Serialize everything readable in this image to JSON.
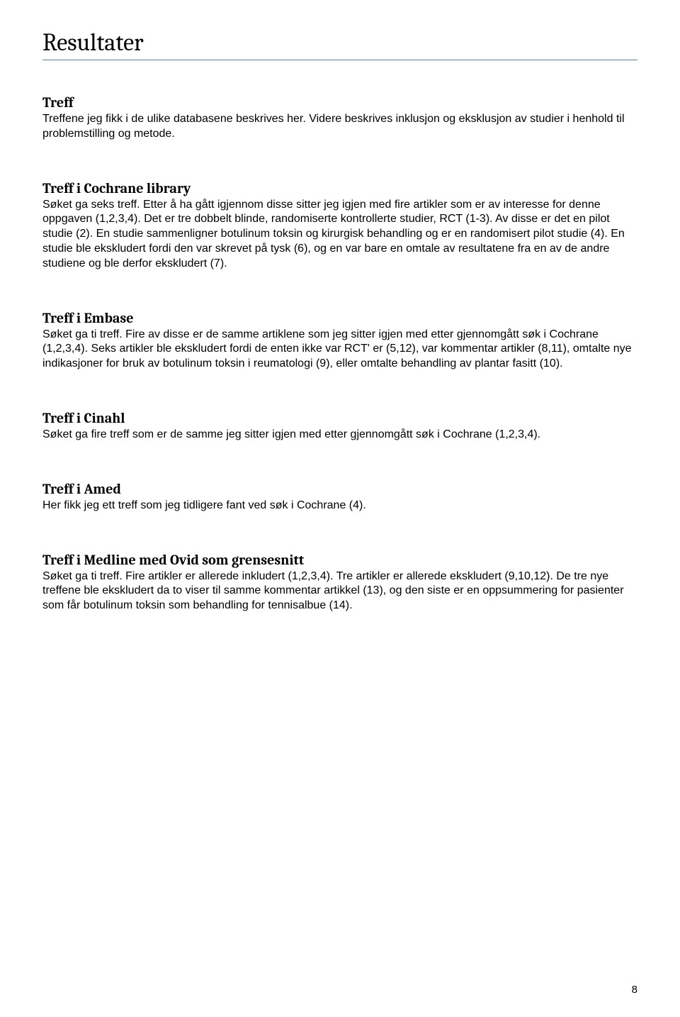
{
  "page": {
    "title": "Resultater",
    "number": "8"
  },
  "sections": [
    {
      "heading": "Treff",
      "body": "Treffene jeg fikk i de ulike databasene beskrives her. Videre beskrives inklusjon og eksklusjon av studier i henhold til problemstilling og metode."
    },
    {
      "heading": "Treff i Cochrane library",
      "body": "Søket ga seks treff. Etter å ha gått igjennom disse sitter jeg igjen med fire artikler som er av interesse for denne oppgaven (1,2,3,4). Det er tre dobbelt blinde, randomiserte kontrollerte studier, RCT (1-3). Av disse er det en pilot studie (2). En studie sammenligner botulinum toksin og kirurgisk behandling og er en randomisert pilot studie (4). En studie ble ekskludert fordi den var skrevet på tysk (6), og en var bare en omtale av resultatene fra en av de andre studiene og ble derfor ekskludert (7)."
    },
    {
      "heading": "Treff i Embase",
      "body": "Søket ga ti treff. Fire av disse er de samme artiklene som jeg sitter igjen med etter gjennomgått søk i Cochrane (1,2,3,4). Seks artikler ble ekskludert fordi de enten ikke var RCT' er (5,12), var kommentar artikler (8,11), omtalte nye indikasjoner for bruk av botulinum toksin i reumatologi (9), eller omtalte behandling av plantar fasitt (10)."
    },
    {
      "heading": "Treff i Cinahl",
      "body": "Søket ga fire treff som er de samme jeg sitter igjen med etter gjennomgått søk i Cochrane (1,2,3,4)."
    },
    {
      "heading": "Treff i Amed",
      "body": "Her fikk jeg ett treff som jeg tidligere fant ved søk i Cochrane (4)."
    },
    {
      "heading": "Treff i Medline med Ovid som grensesnitt",
      "body": "Søket ga ti treff. Fire artikler er allerede inkludert (1,2,3,4). Tre artikler er allerede ekskludert (9,10,12). De tre nye treffene ble ekskludert da to viser til samme kommentar artikkel (13), og den siste er en oppsummering for pasienter som får botulinum toksin som behandling for tennisalbue (14)."
    }
  ]
}
